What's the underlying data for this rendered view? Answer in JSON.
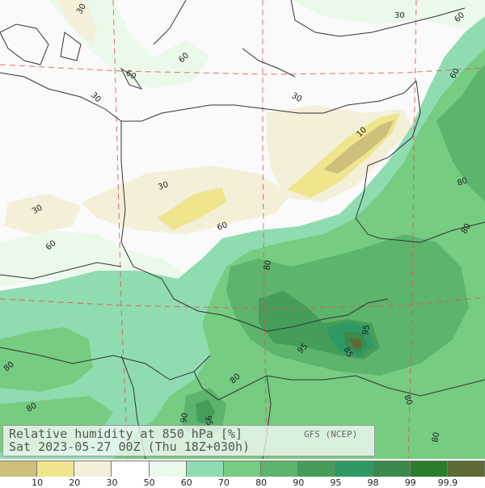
{
  "map": {
    "title_line1": "Relative humidity at 850 hPa [%]",
    "title_line2": "Sat 2023-05-27 00Z (Thu 18Z+030h)",
    "source": "GFS (NCEP)",
    "contour_labels": [
      "30",
      "30",
      "60",
      "60",
      "30",
      "30",
      "10",
      "60",
      "30",
      "60",
      "80",
      "30",
      "60",
      "60",
      "80",
      "80",
      "80",
      "95",
      "95",
      "85",
      "80",
      "80",
      "95",
      "90",
      "80",
      "80"
    ]
  },
  "legend": {
    "colors": [
      "#cdc07a",
      "#efe58d",
      "#f3efd9",
      "#ffffff",
      "#ebf9ea",
      "#8fdcb0",
      "#76cc80",
      "#5cb46d",
      "#449e59",
      "#2f9963",
      "#3b8a4d",
      "#2a7d2a",
      "#5d6a35"
    ],
    "ticks": [
      "10",
      "20",
      "30",
      "50",
      "60",
      "70",
      "80",
      "90",
      "95",
      "98",
      "99",
      "99.9"
    ]
  }
}
